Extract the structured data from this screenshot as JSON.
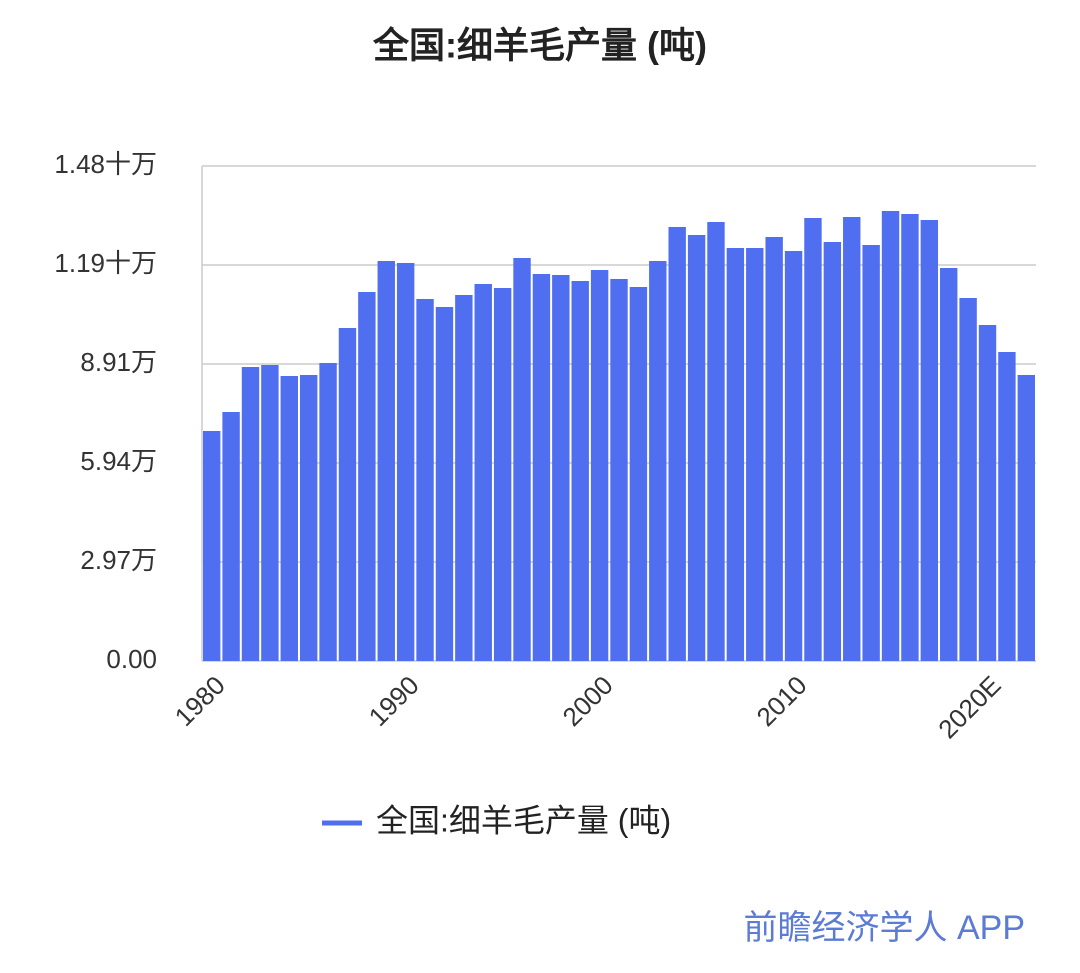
{
  "chart_data": {
    "type": "bar",
    "title": "全国:细羊毛产量 (吨)",
    "categories": [
      "1980",
      null,
      null,
      null,
      null,
      null,
      null,
      null,
      null,
      null,
      "1990",
      null,
      null,
      null,
      null,
      null,
      null,
      null,
      null,
      null,
      "2000",
      null,
      null,
      null,
      null,
      null,
      null,
      null,
      null,
      null,
      "2010",
      null,
      null,
      null,
      null,
      null,
      null,
      null,
      null,
      null,
      "2020E",
      null,
      null
    ],
    "series": [
      {
        "name": "全国:细羊毛产量 (吨)",
        "color": "#4f6ef0",
        "values": [
          69000,
          74700,
          88200,
          88800,
          85500,
          85800,
          89400,
          99900,
          110700,
          120000,
          119400,
          108600,
          106200,
          109800,
          113100,
          111900,
          120900,
          116100,
          115800,
          114000,
          117300,
          114600,
          112200,
          120000,
          130200,
          127800,
          131700,
          123900,
          123900,
          127200,
          123000,
          132900,
          125700,
          133200,
          124800,
          135000,
          134100,
          132300,
          117900,
          108900,
          100800,
          92700,
          85800
        ]
      }
    ],
    "ylim": [
      0,
      148500
    ],
    "yticks": [
      {
        "value": 0,
        "label": "0.00"
      },
      {
        "value": 29700,
        "label": "2.97万"
      },
      {
        "value": 59400,
        "label": "5.94万"
      },
      {
        "value": 89100,
        "label": "8.91万"
      },
      {
        "value": 118800,
        "label": "1.19十万"
      },
      {
        "value": 148500,
        "label": "1.48十万"
      }
    ],
    "grid": true,
    "watermark": "前瞻经济学人 APP"
  }
}
